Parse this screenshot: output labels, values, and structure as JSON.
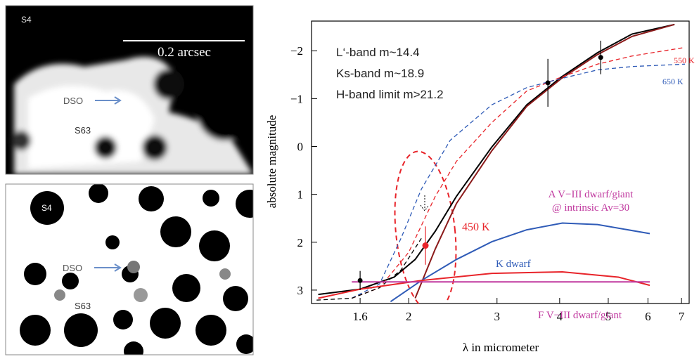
{
  "images": [
    {
      "labels": [
        "S4",
        "0.2 arcsec",
        "DSO",
        "S63"
      ]
    },
    {
      "labels": [
        "S4",
        "DSO",
        "S63"
      ]
    }
  ],
  "chart_data": {
    "type": "line",
    "x_label": "λ in micrometer",
    "y_label": "absolute magnitude",
    "x_log": true,
    "xlim": [
      1.28,
      7.25
    ],
    "xticks": [
      1.6,
      2,
      3,
      4,
      5,
      6,
      7
    ],
    "ylim": [
      3.28,
      -2.62
    ],
    "yticks": [
      {
        "value": -2,
        "label": "−2"
      },
      {
        "value": -1,
        "label": "−1"
      },
      0,
      1,
      2,
      3
    ],
    "annotations": [
      "L‘-band  m~14.4",
      "Ks-band m~18.9",
      "H-band limit  m>21.2",
      "550 K",
      "650 K",
      "450 K",
      "A V−III dwarf/giant",
      "@ intrinsic Av=30",
      "K dwarf",
      "F V−III dwarf/giant"
    ],
    "series": [
      {
        "color": "#000000",
        "dashed": false,
        "x": [
          1.32,
          1.6,
          1.87,
          2.06,
          2.26,
          2.49,
          2.93,
          3.44,
          4.03,
          4.76,
          5.58,
          6.78
        ],
        "values": [
          3.09,
          2.98,
          2.73,
          2.36,
          1.77,
          1.04,
          0.01,
          -0.87,
          -1.45,
          -1.96,
          -2.35,
          -2.55
        ]
      },
      {
        "color": "#8b1a1a",
        "dashed": false,
        "x": [
          2.06,
          2.26,
          2.49,
          2.93,
          3.44,
          4.03,
          4.76,
          5.58,
          6.78
        ],
        "values": [
          3.17,
          2.14,
          1.19,
          0.09,
          -0.84,
          -1.42,
          -1.92,
          -2.3,
          -2.55
        ]
      },
      {
        "color": "#e8242a",
        "dashed": true,
        "x": [
          1.54,
          1.75,
          2.0,
          2.26,
          2.49,
          2.93,
          3.44,
          4.03,
          4.76,
          5.58,
          7.11
        ],
        "values": [
          3.17,
          2.95,
          2.21,
          1.04,
          0.31,
          -0.5,
          -1.16,
          -1.45,
          -1.72,
          -1.89,
          -2.07
        ]
      },
      {
        "color": "#2f5bb7",
        "dashed": true,
        "x": [
          1.54,
          1.75,
          1.93,
          2.12,
          2.42,
          2.93,
          3.44,
          4.03,
          4.76,
          5.58,
          7.11
        ],
        "values": [
          3.17,
          2.87,
          1.92,
          0.89,
          -0.13,
          -0.87,
          -1.23,
          -1.42,
          -1.6,
          -1.67,
          -1.72
        ]
      },
      {
        "color": "#000000",
        "dashed": true,
        "x": [
          1.31,
          1.54,
          1.75,
          1.93,
          2.12
        ],
        "values": [
          3.21,
          3.17,
          2.95,
          2.58,
          1.92
        ]
      },
      {
        "color": "#2f5bb7",
        "dashed": false,
        "x": [
          1.84,
          2.12,
          2.49,
          2.93,
          3.44,
          4.05,
          4.76,
          6.05
        ],
        "values": [
          3.24,
          2.8,
          2.36,
          1.99,
          1.74,
          1.6,
          1.63,
          1.82
        ]
      },
      {
        "color": "#e8242a",
        "dashed": false,
        "x": [
          1.32,
          1.6,
          2.12,
          2.93,
          4.05,
          5.24,
          6.05
        ],
        "values": [
          3.17,
          2.98,
          2.8,
          2.65,
          2.62,
          2.73,
          2.9
        ]
      },
      {
        "color": "#c0399f",
        "dashed": false,
        "x": [
          1.54,
          6.05
        ],
        "values": [
          2.83,
          2.83
        ]
      }
    ],
    "points": {
      "x": [
        1.6,
        3.79,
        4.83,
        2.16
      ],
      "values": [
        2.8,
        -1.33,
        -1.86,
        2.07
      ],
      "errors": [
        0.2,
        0.5,
        0.35,
        0.4
      ],
      "colors": [
        "#000000",
        "#000000",
        "#000000",
        "#e8242a"
      ]
    }
  }
}
